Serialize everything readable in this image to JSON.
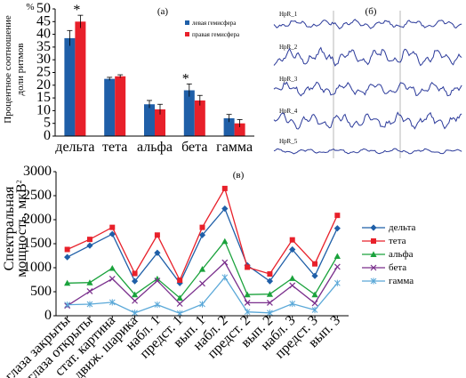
{
  "chart_data": [
    {
      "panel": "(а)",
      "type": "bar",
      "ylabel_unit": "%",
      "ylabel": "Процентное соотношение доли ритмов",
      "ylim": [
        0,
        50
      ],
      "yticks": [
        0,
        5,
        10,
        15,
        20,
        25,
        30,
        35,
        40,
        45,
        50
      ],
      "categories": [
        "дельта",
        "тета",
        "альфа",
        "бета",
        "гамма"
      ],
      "legend_position": "top-right",
      "series": [
        {
          "name": "левая гемисфера",
          "color": "#1f5fa8",
          "values": [
            38.5,
            22.5,
            12.5,
            18.0,
            7.0
          ],
          "errors": [
            3.0,
            0.6,
            1.5,
            2.5,
            1.5
          ]
        },
        {
          "name": "правая гемисфера",
          "color": "#e8202a",
          "values": [
            45.0,
            23.5,
            10.5,
            14.0,
            5.0
          ],
          "errors": [
            2.5,
            0.6,
            2.0,
            2.0,
            1.5
          ]
        }
      ],
      "annotations": [
        {
          "text": "*",
          "category": "дельта",
          "series": 1
        },
        {
          "text": "*",
          "category": "бета",
          "series": 0
        }
      ]
    },
    {
      "panel": "(в)",
      "type": "line",
      "ylabel": "Спектральная мощность, мкВ",
      "ylabel_sup": "2",
      "ylim": [
        0,
        3000
      ],
      "yticks": [
        0,
        500,
        1000,
        1500,
        2000,
        2500,
        3000
      ],
      "categories": [
        "глаза закрыты",
        "глаза открыты",
        "стат. картина",
        "движ. шарика",
        "набл. 1",
        "предст. 1",
        "вып. 1",
        "набл. 2",
        "предст. 2",
        "вып. 2",
        "набл. 3",
        "предст. 3",
        "вып. 3"
      ],
      "legend_position": "right",
      "series": [
        {
          "name": "дельта",
          "color": "#1f5fa8",
          "marker": "diamond",
          "values": [
            1220,
            1460,
            1700,
            720,
            1310,
            680,
            1680,
            2230,
            1050,
            720,
            1380,
            830,
            1820
          ]
        },
        {
          "name": "тета",
          "color": "#e8202a",
          "marker": "square",
          "values": [
            1380,
            1590,
            1840,
            880,
            1680,
            740,
            1840,
            2650,
            1010,
            870,
            1580,
            1080,
            2090
          ]
        },
        {
          "name": "альфа",
          "color": "#1aa23c",
          "marker": "triangle",
          "values": [
            680,
            690,
            990,
            440,
            770,
            370,
            970,
            1550,
            440,
            450,
            780,
            440,
            1240
          ]
        },
        {
          "name": "бета",
          "color": "#7a2f8c",
          "marker": "x",
          "values": [
            210,
            510,
            770,
            310,
            730,
            250,
            670,
            1110,
            270,
            270,
            630,
            260,
            1020
          ]
        },
        {
          "name": "гамма",
          "color": "#5aa8d8",
          "marker": "asterisk",
          "values": [
            230,
            240,
            280,
            60,
            230,
            50,
            240,
            800,
            80,
            60,
            250,
            120,
            680
          ]
        }
      ]
    }
  ],
  "eeg_panel": {
    "label": "(б)",
    "trace_color": "#2b3a9a",
    "channels": [
      "HpR_1",
      "HpR_2",
      "HpR_3",
      "HpR_4",
      "HpR_5"
    ]
  }
}
